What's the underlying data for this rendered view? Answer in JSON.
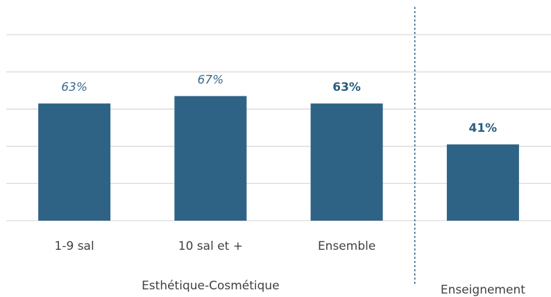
{
  "chart_data": {
    "type": "bar",
    "categories": [
      "1-9 sal",
      "10 sal et +",
      "Ensemble",
      null
    ],
    "values": [
      63,
      67,
      63,
      41
    ],
    "value_labels": [
      "63%",
      "67%",
      "63%",
      "41%"
    ],
    "emphasis": [
      false,
      false,
      true,
      true
    ],
    "groups": [
      {
        "name": "Esthétique-Cosmétique",
        "size": 3
      },
      {
        "name": "Enseignement",
        "size": 1
      }
    ],
    "color": "#2e6386",
    "ylim": [
      0,
      100
    ],
    "yticks": [
      0,
      20,
      40,
      60,
      80,
      100
    ],
    "grid": true
  }
}
